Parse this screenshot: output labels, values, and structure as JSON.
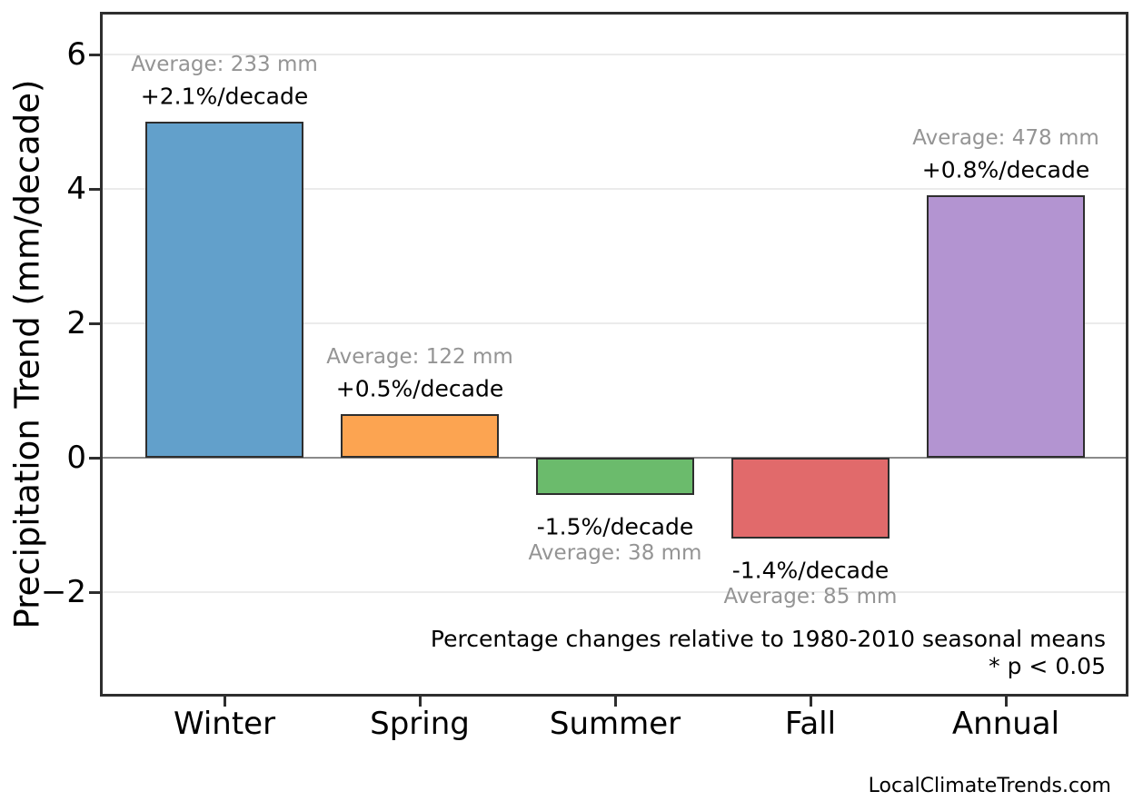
{
  "watermark": "LocalClimateTrends.com",
  "chart_data": {
    "type": "bar",
    "title": "",
    "xlabel": "",
    "ylabel": "Precipitation Trend (mm/decade)",
    "categories": [
      "Winter",
      "Spring",
      "Summer",
      "Fall",
      "Annual"
    ],
    "values": [
      5.0,
      0.65,
      -0.55,
      -1.2,
      3.9
    ],
    "averages_mm": [
      233,
      122,
      38,
      85,
      478
    ],
    "percent_per_decade": [
      2.1,
      0.5,
      -1.5,
      -1.4,
      0.8
    ],
    "average_labels": [
      "Average: 233 mm",
      "Average: 122 mm",
      "Average: 38 mm",
      "Average: 85 mm",
      "Average: 478 mm"
    ],
    "percent_labels": [
      "+2.1%/decade",
      "+0.5%/decade",
      "-1.5%/decade",
      "-1.4%/decade",
      "+0.8%/decade"
    ],
    "bar_colors": [
      "#62A0CB",
      "#FCA451",
      "#6BBB6C",
      "#E16A6B",
      "#B394D1"
    ],
    "bar_edge_color": "#2e2e2e",
    "yticks": [
      6,
      4,
      2,
      0,
      -2
    ],
    "ytick_labels": [
      "6",
      "4",
      "2",
      "0",
      "−2"
    ],
    "ylim": [
      -3.5,
      6.6
    ],
    "grid": true,
    "legend_position": "none",
    "annotations": {
      "note_line1": "Percentage changes relative to 1980-2010 seasonal means",
      "note_line2": "* p < 0.05"
    }
  }
}
